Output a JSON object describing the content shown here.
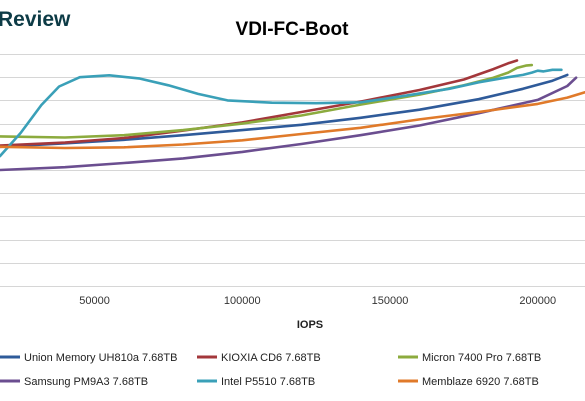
{
  "header": {
    "brand_fragment": "Review"
  },
  "chart_data": {
    "type": "line",
    "title": "VDI-FC-Boot",
    "xlabel": "IOPS",
    "ylabel": "",
    "xlim": [
      18000,
      216000
    ],
    "ylim": [
      0,
      10
    ],
    "x_ticks": [
      {
        "value": 50000,
        "label": "50000"
      },
      {
        "value": 100000,
        "label": "100000"
      },
      {
        "value": 150000,
        "label": "150000"
      },
      {
        "value": 200000,
        "label": "200000"
      }
    ],
    "y_tick_labels_visible": false,
    "grid": true,
    "legend_position": "bottom",
    "series": [
      {
        "name": "Union Memory UH810a 7.68TB",
        "color": "#2f5b9a",
        "points": [
          [
            18000,
            6.0
          ],
          [
            40000,
            6.15
          ],
          [
            60000,
            6.3
          ],
          [
            80000,
            6.5
          ],
          [
            100000,
            6.72
          ],
          [
            120000,
            6.95
          ],
          [
            140000,
            7.25
          ],
          [
            160000,
            7.6
          ],
          [
            180000,
            8.05
          ],
          [
            195000,
            8.5
          ],
          [
            205000,
            8.85
          ],
          [
            210000,
            9.1
          ]
        ]
      },
      {
        "name": "KIOXIA CD6 7.68TB",
        "color": "#a3373b",
        "points": [
          [
            18000,
            6.05
          ],
          [
            40000,
            6.18
          ],
          [
            60000,
            6.38
          ],
          [
            80000,
            6.7
          ],
          [
            100000,
            7.05
          ],
          [
            120000,
            7.5
          ],
          [
            140000,
            7.95
          ],
          [
            160000,
            8.45
          ],
          [
            175000,
            8.9
          ],
          [
            185000,
            9.35
          ],
          [
            190000,
            9.6
          ],
          [
            193000,
            9.72
          ]
        ]
      },
      {
        "name": "Micron 7400 Pro 7.68TB",
        "color": "#8cab3e",
        "points": [
          [
            18000,
            6.45
          ],
          [
            40000,
            6.4
          ],
          [
            60000,
            6.5
          ],
          [
            80000,
            6.72
          ],
          [
            100000,
            7.0
          ],
          [
            120000,
            7.35
          ],
          [
            140000,
            7.82
          ],
          [
            160000,
            8.25
          ],
          [
            175000,
            8.65
          ],
          [
            185000,
            8.98
          ],
          [
            190000,
            9.2
          ],
          [
            193000,
            9.4
          ],
          [
            196000,
            9.5
          ],
          [
            198000,
            9.52
          ]
        ]
      },
      {
        "name": "Samsung PM9A3 7.68TB",
        "color": "#6b4e90",
        "points": [
          [
            18000,
            5.0
          ],
          [
            40000,
            5.12
          ],
          [
            60000,
            5.3
          ],
          [
            80000,
            5.5
          ],
          [
            100000,
            5.78
          ],
          [
            120000,
            6.12
          ],
          [
            140000,
            6.5
          ],
          [
            160000,
            6.92
          ],
          [
            180000,
            7.45
          ],
          [
            200000,
            8.02
          ],
          [
            210000,
            8.62
          ],
          [
            213000,
            8.98
          ]
        ]
      },
      {
        "name": "Intel P5510 7.68TB",
        "color": "#3aa0b8",
        "points": [
          [
            18000,
            5.6
          ],
          [
            25000,
            6.6
          ],
          [
            32000,
            7.8
          ],
          [
            38000,
            8.6
          ],
          [
            45000,
            9.0
          ],
          [
            55000,
            9.08
          ],
          [
            65000,
            8.95
          ],
          [
            75000,
            8.65
          ],
          [
            85000,
            8.28
          ],
          [
            95000,
            8.0
          ],
          [
            110000,
            7.9
          ],
          [
            125000,
            7.88
          ],
          [
            140000,
            7.92
          ],
          [
            155000,
            8.2
          ],
          [
            170000,
            8.5
          ],
          [
            180000,
            8.78
          ],
          [
            190000,
            9.0
          ],
          [
            195000,
            9.1
          ],
          [
            198000,
            9.2
          ],
          [
            200000,
            9.28
          ],
          [
            202000,
            9.25
          ],
          [
            205000,
            9.32
          ],
          [
            208000,
            9.32
          ]
        ]
      },
      {
        "name": "Memblaze 6920 7.68TB",
        "color": "#e07a2a",
        "points": [
          [
            18000,
            6.0
          ],
          [
            40000,
            5.95
          ],
          [
            60000,
            5.98
          ],
          [
            80000,
            6.1
          ],
          [
            100000,
            6.28
          ],
          [
            120000,
            6.55
          ],
          [
            140000,
            6.82
          ],
          [
            160000,
            7.18
          ],
          [
            180000,
            7.5
          ],
          [
            200000,
            7.85
          ],
          [
            210000,
            8.12
          ],
          [
            216000,
            8.35
          ]
        ]
      }
    ]
  }
}
